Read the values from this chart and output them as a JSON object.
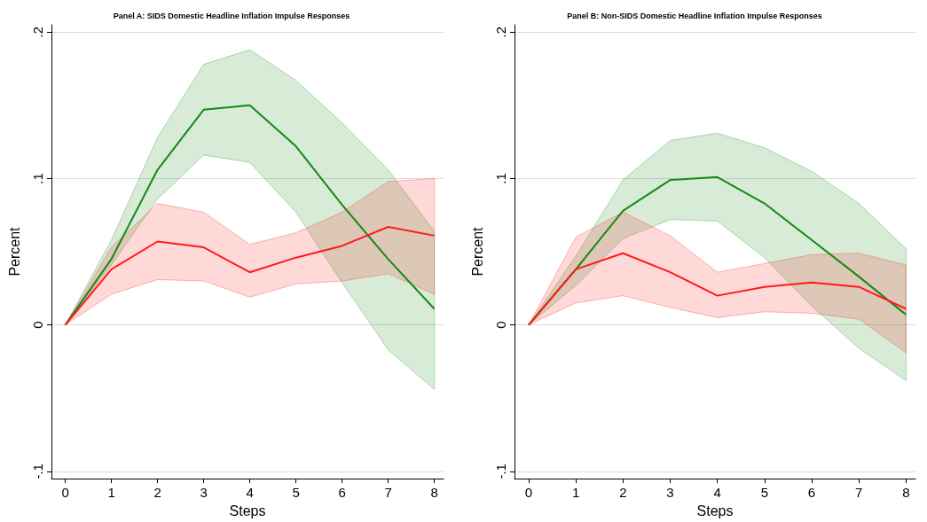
{
  "chart_data": [
    {
      "type": "line",
      "title": "Panel A: SIDS Domestic Headline Inflation Impulse Responses",
      "xlabel": "Steps",
      "ylabel": "Percent",
      "x": [
        0,
        1,
        2,
        3,
        4,
        5,
        6,
        7,
        8
      ],
      "xlim": [
        -0.3,
        8.2
      ],
      "xticks": [
        0,
        1,
        2,
        3,
        4,
        5,
        6,
        7,
        8
      ],
      "ylim": [
        -0.105,
        0.205
      ],
      "yticks": [
        {
          "value": -0.1,
          "label": "-.1"
        },
        {
          "value": 0,
          "label": "0"
        },
        {
          "value": 0.1,
          "label": ".1"
        },
        {
          "value": 0.2,
          "label": ".2"
        }
      ],
      "grid": "y",
      "marker": "none",
      "line_style": "solid",
      "series": [
        {
          "color": "#148a14",
          "values": [
            0,
            0.045,
            0.106,
            0.147,
            0.15,
            0.122,
            0.082,
            0.045,
            0.011
          ],
          "lower": [
            0,
            0.041,
            0.086,
            0.116,
            0.111,
            0.077,
            0.029,
            -0.017,
            -0.044
          ],
          "upper": [
            0,
            0.058,
            0.128,
            0.178,
            0.188,
            0.167,
            0.138,
            0.106,
            0.064
          ]
        },
        {
          "color": "#ff1a1a",
          "values": [
            0,
            0.038,
            0.057,
            0.053,
            0.036,
            0.046,
            0.054,
            0.067,
            0.061
          ],
          "lower": [
            0,
            0.021,
            0.031,
            0.03,
            0.019,
            0.028,
            0.03,
            0.035,
            0.021
          ],
          "upper": [
            0,
            0.053,
            0.083,
            0.077,
            0.055,
            0.063,
            0.077,
            0.098,
            0.1
          ]
        }
      ]
    },
    {
      "type": "line",
      "title": "Panel B: Non-SIDS Domestic Headline Inflation Impulse Responses",
      "xlabel": "Steps",
      "ylabel": "Percent",
      "x": [
        0,
        1,
        2,
        3,
        4,
        5,
        6,
        7,
        8
      ],
      "xlim": [
        -0.3,
        8.2
      ],
      "xticks": [
        0,
        1,
        2,
        3,
        4,
        5,
        6,
        7,
        8
      ],
      "ylim": [
        -0.105,
        0.205
      ],
      "yticks": [
        {
          "value": -0.1,
          "label": "-.1"
        },
        {
          "value": 0,
          "label": "0"
        },
        {
          "value": 0.1,
          "label": ".1"
        },
        {
          "value": 0.2,
          "label": ".2"
        }
      ],
      "grid": "y",
      "marker": "none",
      "line_style": "solid",
      "series": [
        {
          "color": "#148a14",
          "values": [
            0,
            0.038,
            0.078,
            0.099,
            0.101,
            0.083,
            0.058,
            0.033,
            0.007
          ],
          "lower": [
            0,
            0.027,
            0.059,
            0.072,
            0.071,
            0.046,
            0.013,
            -0.016,
            -0.038
          ],
          "upper": [
            0,
            0.047,
            0.099,
            0.126,
            0.131,
            0.121,
            0.105,
            0.083,
            0.052
          ]
        },
        {
          "color": "#ff1a1a",
          "values": [
            0,
            0.038,
            0.049,
            0.036,
            0.02,
            0.026,
            0.029,
            0.026,
            0.011
          ],
          "lower": [
            0,
            0.015,
            0.02,
            0.012,
            0.005,
            0.009,
            0.008,
            0.004,
            -0.019
          ],
          "upper": [
            0,
            0.06,
            0.077,
            0.061,
            0.036,
            0.042,
            0.048,
            0.049,
            0.041
          ]
        }
      ]
    }
  ]
}
